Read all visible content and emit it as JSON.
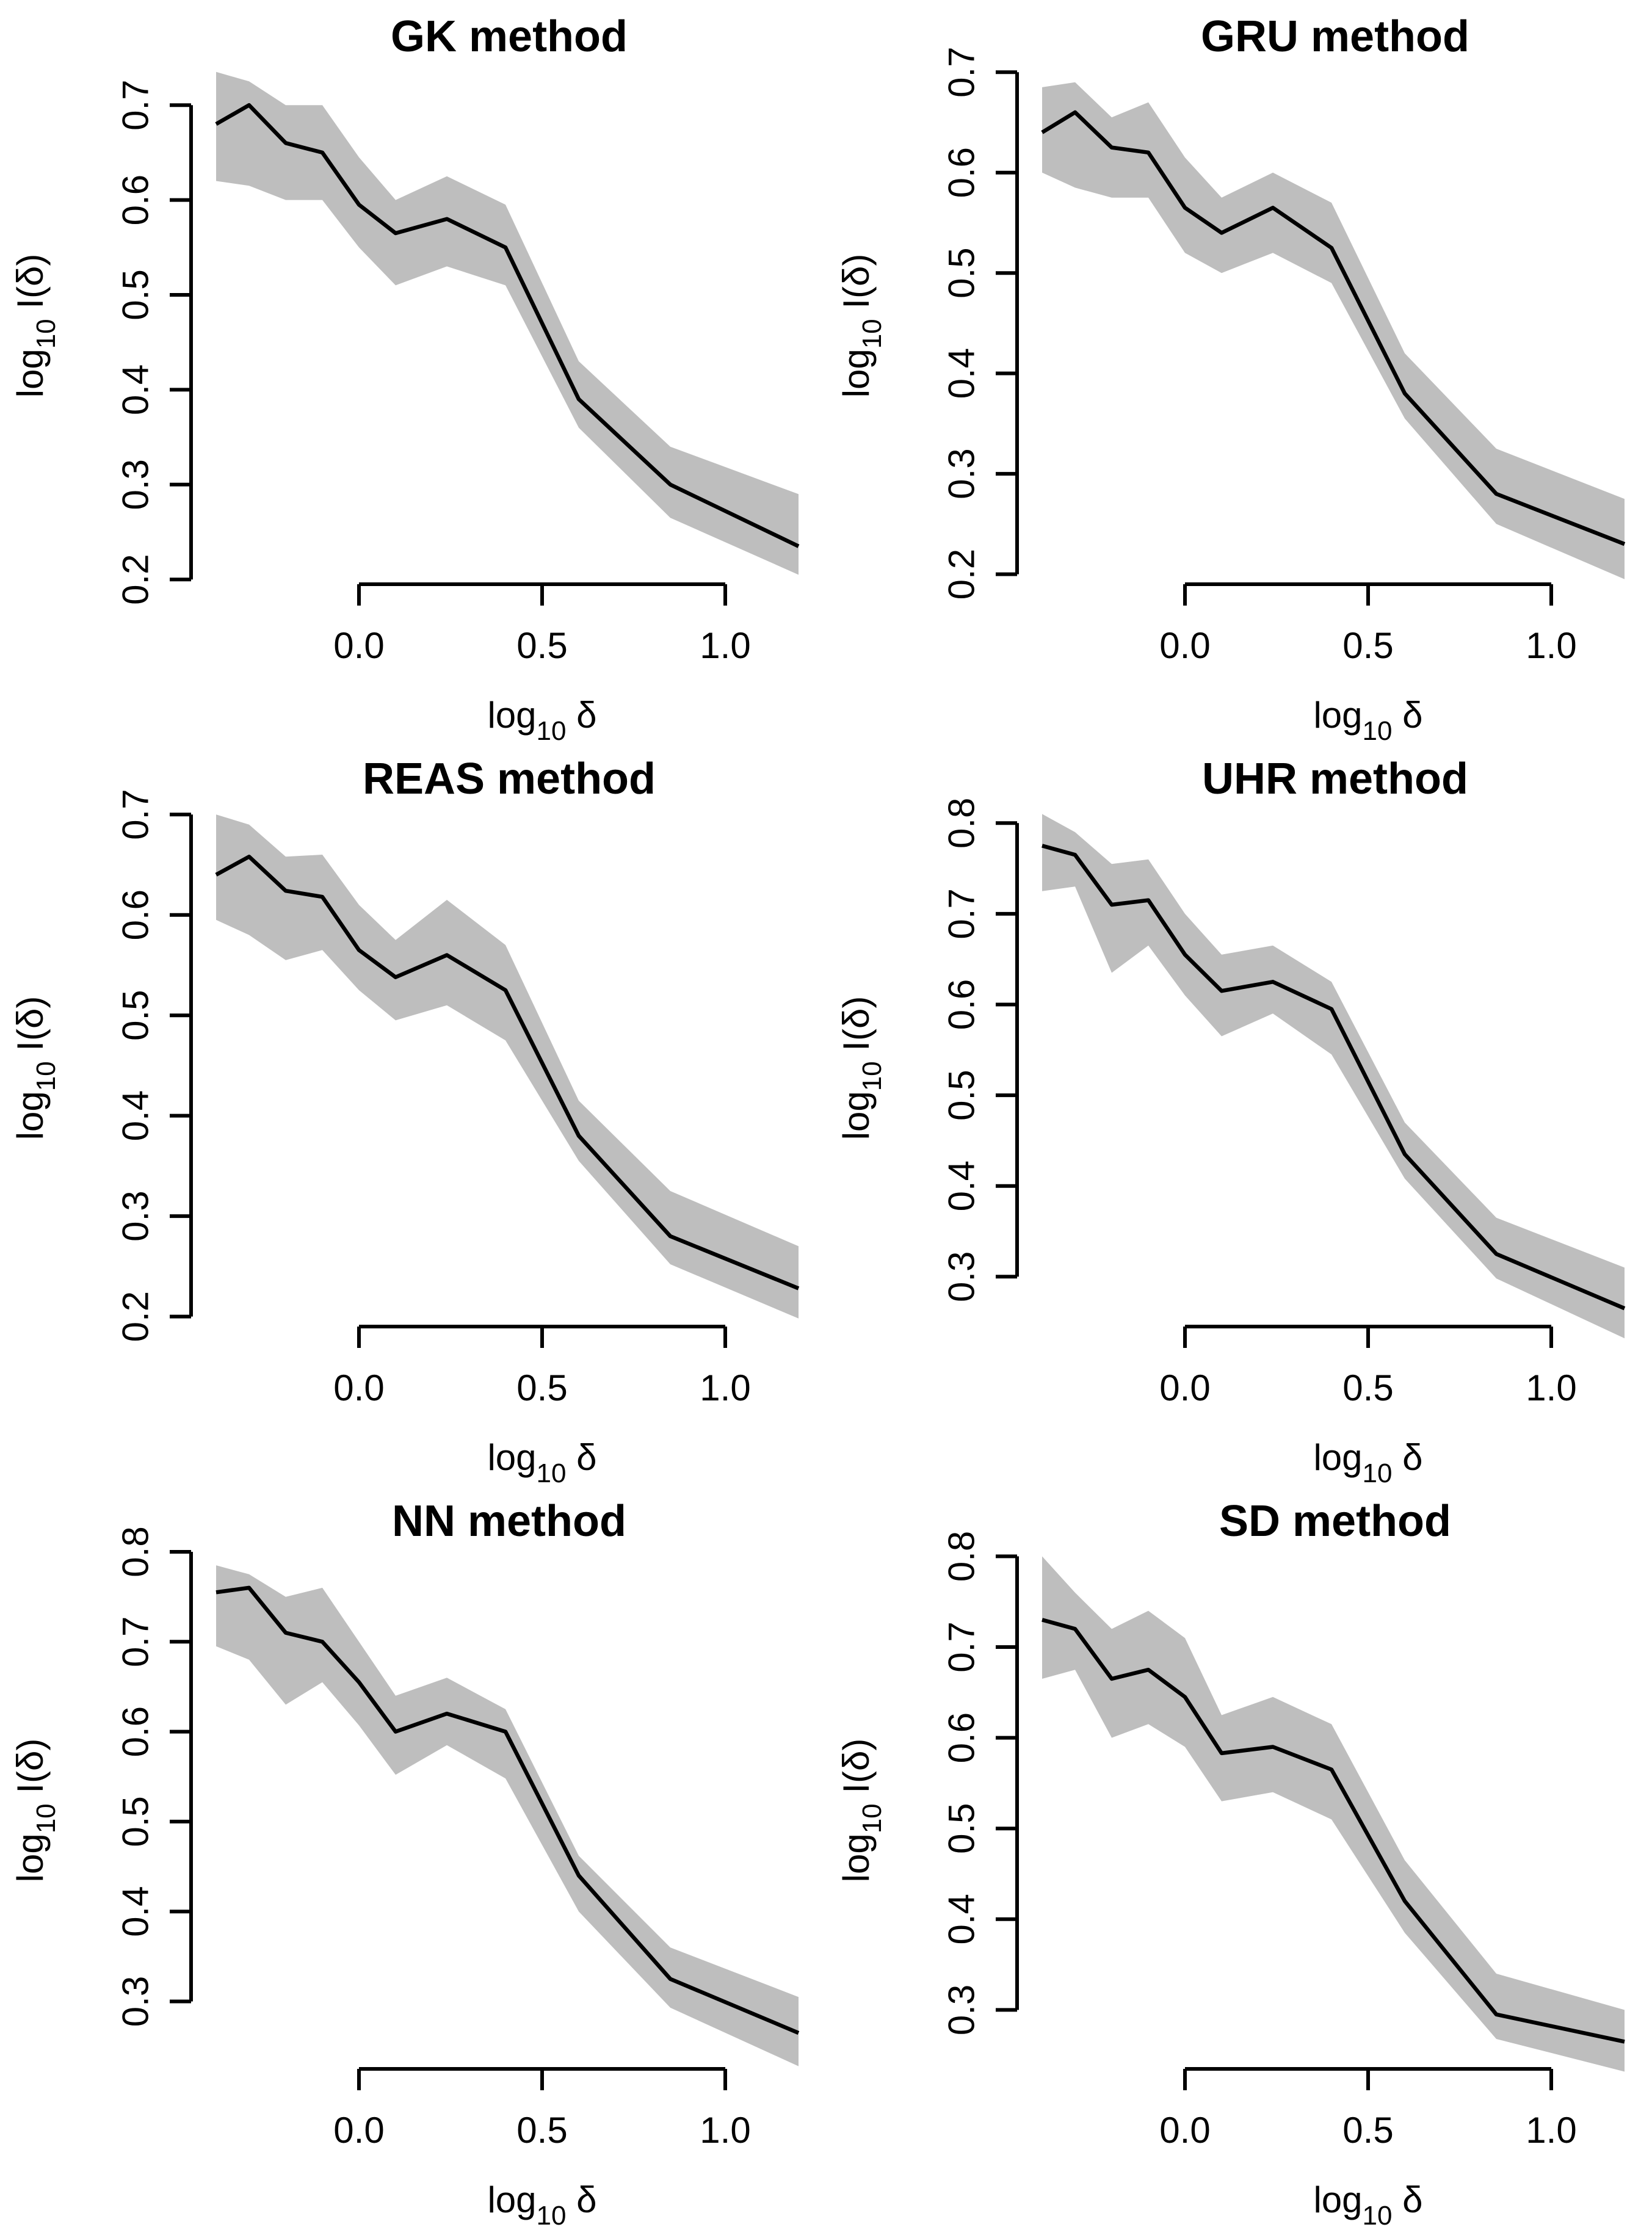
{
  "page": {
    "background": "#ffffff",
    "layout": "2x3 grid of R-style line plots with confidence bands"
  },
  "chart_data": [
    {
      "type": "line",
      "title": "GK method",
      "xlabel": {
        "pre": "log",
        "sub": "10",
        "post": " δ"
      },
      "ylabel": {
        "pre": "log",
        "sub": "10",
        "post": " I(δ)"
      },
      "x": [
        -0.39,
        -0.3,
        -0.2,
        -0.1,
        0.0,
        0.1,
        0.24,
        0.4,
        0.6,
        0.85,
        1.2
      ],
      "series": [
        {
          "values": [
            0.68,
            0.7,
            0.66,
            0.65,
            0.595,
            0.565,
            0.58,
            0.55,
            0.39,
            0.3,
            0.235
          ]
        }
      ],
      "band": {
        "upper": [
          0.735,
          0.725,
          0.7,
          0.7,
          0.645,
          0.6,
          0.625,
          0.595,
          0.43,
          0.34,
          0.29
        ],
        "lower": [
          0.62,
          0.615,
          0.6,
          0.6,
          0.55,
          0.51,
          0.53,
          0.51,
          0.36,
          0.265,
          0.205
        ]
      },
      "xlim": [
        -0.45,
        1.27
      ],
      "ylim": [
        0.195,
        0.74
      ],
      "xticks": {
        "values": [
          0.0,
          0.5,
          1.0
        ],
        "labels": [
          "0.0",
          "0.5",
          "1.0"
        ]
      },
      "yticks": {
        "values": [
          0.2,
          0.3,
          0.4,
          0.5,
          0.6,
          0.7
        ],
        "labels": [
          "0.2",
          "0.3",
          "0.4",
          "0.5",
          "0.6",
          "0.7"
        ]
      },
      "colors": {
        "line": "#000000",
        "band": "#bebebe",
        "axis": "#000000"
      },
      "grid": false,
      "legend": "none"
    },
    {
      "type": "line",
      "title": "GRU method",
      "xlabel": {
        "pre": "log",
        "sub": "10",
        "post": " δ"
      },
      "ylabel": {
        "pre": "log",
        "sub": "10",
        "post": " I(δ)"
      },
      "x": [
        -0.39,
        -0.3,
        -0.2,
        -0.1,
        0.0,
        0.1,
        0.24,
        0.4,
        0.6,
        0.85,
        1.2
      ],
      "series": [
        {
          "values": [
            0.64,
            0.66,
            0.625,
            0.62,
            0.565,
            0.54,
            0.565,
            0.525,
            0.38,
            0.28,
            0.23
          ]
        }
      ],
      "band": {
        "upper": [
          0.685,
          0.69,
          0.655,
          0.67,
          0.615,
          0.575,
          0.6,
          0.57,
          0.42,
          0.325,
          0.275
        ],
        "lower": [
          0.6,
          0.585,
          0.575,
          0.575,
          0.52,
          0.5,
          0.52,
          0.49,
          0.355,
          0.25,
          0.195
        ]
      },
      "xlim": [
        -0.45,
        1.27
      ],
      "ylim": [
        0.19,
        0.705
      ],
      "xticks": {
        "values": [
          0.0,
          0.5,
          1.0
        ],
        "labels": [
          "0.0",
          "0.5",
          "1.0"
        ]
      },
      "yticks": {
        "values": [
          0.2,
          0.3,
          0.4,
          0.5,
          0.6,
          0.7
        ],
        "labels": [
          "0.2",
          "0.3",
          "0.4",
          "0.5",
          "0.6",
          "0.7"
        ]
      },
      "colors": {
        "line": "#000000",
        "band": "#bebebe",
        "axis": "#000000"
      },
      "grid": false,
      "legend": "none"
    },
    {
      "type": "line",
      "title": "REAS method",
      "xlabel": {
        "pre": "log",
        "sub": "10",
        "post": " δ"
      },
      "ylabel": {
        "pre": "log",
        "sub": "10",
        "post": " I(δ)"
      },
      "x": [
        -0.39,
        -0.3,
        -0.2,
        -0.1,
        0.0,
        0.1,
        0.24,
        0.4,
        0.6,
        0.85,
        1.2
      ],
      "series": [
        {
          "values": [
            0.64,
            0.658,
            0.624,
            0.618,
            0.565,
            0.538,
            0.56,
            0.525,
            0.38,
            0.28,
            0.228
          ]
        }
      ],
      "band": {
        "upper": [
          0.7,
          0.69,
          0.658,
          0.66,
          0.61,
          0.575,
          0.615,
          0.57,
          0.415,
          0.325,
          0.27
        ],
        "lower": [
          0.595,
          0.58,
          0.555,
          0.565,
          0.525,
          0.495,
          0.51,
          0.475,
          0.355,
          0.252,
          0.198
        ]
      },
      "xlim": [
        -0.45,
        1.27
      ],
      "ylim": [
        0.19,
        0.705
      ],
      "xticks": {
        "values": [
          0.0,
          0.5,
          1.0
        ],
        "labels": [
          "0.0",
          "0.5",
          "1.0"
        ]
      },
      "yticks": {
        "values": [
          0.2,
          0.3,
          0.4,
          0.5,
          0.6,
          0.7
        ],
        "labels": [
          "0.2",
          "0.3",
          "0.4",
          "0.5",
          "0.6",
          "0.7"
        ]
      },
      "colors": {
        "line": "#000000",
        "band": "#bebebe",
        "axis": "#000000"
      },
      "grid": false,
      "legend": "none"
    },
    {
      "type": "line",
      "title": "UHR method",
      "xlabel": {
        "pre": "log",
        "sub": "10",
        "post": " δ"
      },
      "ylabel": {
        "pre": "log",
        "sub": "10",
        "post": " I(δ)"
      },
      "x": [
        -0.39,
        -0.3,
        -0.2,
        -0.1,
        0.0,
        0.1,
        0.24,
        0.4,
        0.6,
        0.85,
        1.2
      ],
      "series": [
        {
          "values": [
            0.775,
            0.765,
            0.71,
            0.715,
            0.655,
            0.615,
            0.625,
            0.595,
            0.435,
            0.325,
            0.265
          ]
        }
      ],
      "band": {
        "upper": [
          0.81,
          0.79,
          0.755,
          0.76,
          0.7,
          0.655,
          0.665,
          0.625,
          0.47,
          0.365,
          0.31
        ],
        "lower": [
          0.725,
          0.73,
          0.635,
          0.665,
          0.61,
          0.565,
          0.59,
          0.545,
          0.408,
          0.298,
          0.232
        ]
      },
      "xlim": [
        -0.45,
        1.27
      ],
      "ylim": [
        0.245,
        0.815
      ],
      "xticks": {
        "values": [
          0.0,
          0.5,
          1.0
        ],
        "labels": [
          "0.0",
          "0.5",
          "1.0"
        ]
      },
      "yticks": {
        "values": [
          0.3,
          0.4,
          0.5,
          0.6,
          0.7,
          0.8
        ],
        "labels": [
          "0.3",
          "0.4",
          "0.5",
          "0.6",
          "0.7",
          "0.8"
        ]
      },
      "colors": {
        "line": "#000000",
        "band": "#bebebe",
        "axis": "#000000"
      },
      "grid": false,
      "legend": "none"
    },
    {
      "type": "line",
      "title": "NN method",
      "xlabel": {
        "pre": "log",
        "sub": "10",
        "post": " δ"
      },
      "ylabel": {
        "pre": "log",
        "sub": "10",
        "post": " I(δ)"
      },
      "x": [
        -0.39,
        -0.3,
        -0.2,
        -0.1,
        0.0,
        0.1,
        0.24,
        0.4,
        0.6,
        0.85,
        1.2
      ],
      "series": [
        {
          "values": [
            0.755,
            0.76,
            0.71,
            0.7,
            0.655,
            0.6,
            0.62,
            0.6,
            0.44,
            0.325,
            0.265
          ]
        }
      ],
      "band": {
        "upper": [
          0.785,
          0.775,
          0.75,
          0.76,
          0.7,
          0.64,
          0.66,
          0.625,
          0.462,
          0.36,
          0.305
        ],
        "lower": [
          0.695,
          0.68,
          0.63,
          0.655,
          0.607,
          0.552,
          0.585,
          0.548,
          0.4,
          0.293,
          0.228
        ]
      },
      "xlim": [
        -0.45,
        1.27
      ],
      "ylim": [
        0.225,
        0.8
      ],
      "xticks": {
        "values": [
          0.0,
          0.5,
          1.0
        ],
        "labels": [
          "0.0",
          "0.5",
          "1.0"
        ]
      },
      "yticks": {
        "values": [
          0.3,
          0.4,
          0.5,
          0.6,
          0.7,
          0.8
        ],
        "labels": [
          "0.3",
          "0.4",
          "0.5",
          "0.6",
          "0.7",
          "0.8"
        ]
      },
      "colors": {
        "line": "#000000",
        "band": "#bebebe",
        "axis": "#000000"
      },
      "grid": false,
      "legend": "none"
    },
    {
      "type": "line",
      "title": "SD method",
      "xlabel": {
        "pre": "log",
        "sub": "10",
        "post": " δ"
      },
      "ylabel": {
        "pre": "log",
        "sub": "10",
        "post": " I(δ)"
      },
      "x": [
        -0.39,
        -0.3,
        -0.2,
        -0.1,
        0.0,
        0.1,
        0.24,
        0.4,
        0.6,
        0.85,
        1.2
      ],
      "series": [
        {
          "values": [
            0.73,
            0.72,
            0.665,
            0.675,
            0.645,
            0.583,
            0.59,
            0.565,
            0.42,
            0.295,
            0.265
          ]
        }
      ],
      "band": {
        "upper": [
          0.8,
          0.76,
          0.72,
          0.74,
          0.71,
          0.625,
          0.645,
          0.615,
          0.465,
          0.34,
          0.3
        ],
        "lower": [
          0.665,
          0.675,
          0.6,
          0.615,
          0.59,
          0.53,
          0.54,
          0.51,
          0.385,
          0.268,
          0.232
        ]
      },
      "xlim": [
        -0.45,
        1.27
      ],
      "ylim": [
        0.235,
        0.805
      ],
      "xticks": {
        "values": [
          0.0,
          0.5,
          1.0
        ],
        "labels": [
          "0.0",
          "0.5",
          "1.0"
        ]
      },
      "yticks": {
        "values": [
          0.3,
          0.4,
          0.5,
          0.6,
          0.7,
          0.8
        ],
        "labels": [
          "0.3",
          "0.4",
          "0.5",
          "0.6",
          "0.7",
          "0.8"
        ]
      },
      "colors": {
        "line": "#000000",
        "band": "#bebebe",
        "axis": "#000000"
      },
      "grid": false,
      "legend": "none"
    }
  ]
}
